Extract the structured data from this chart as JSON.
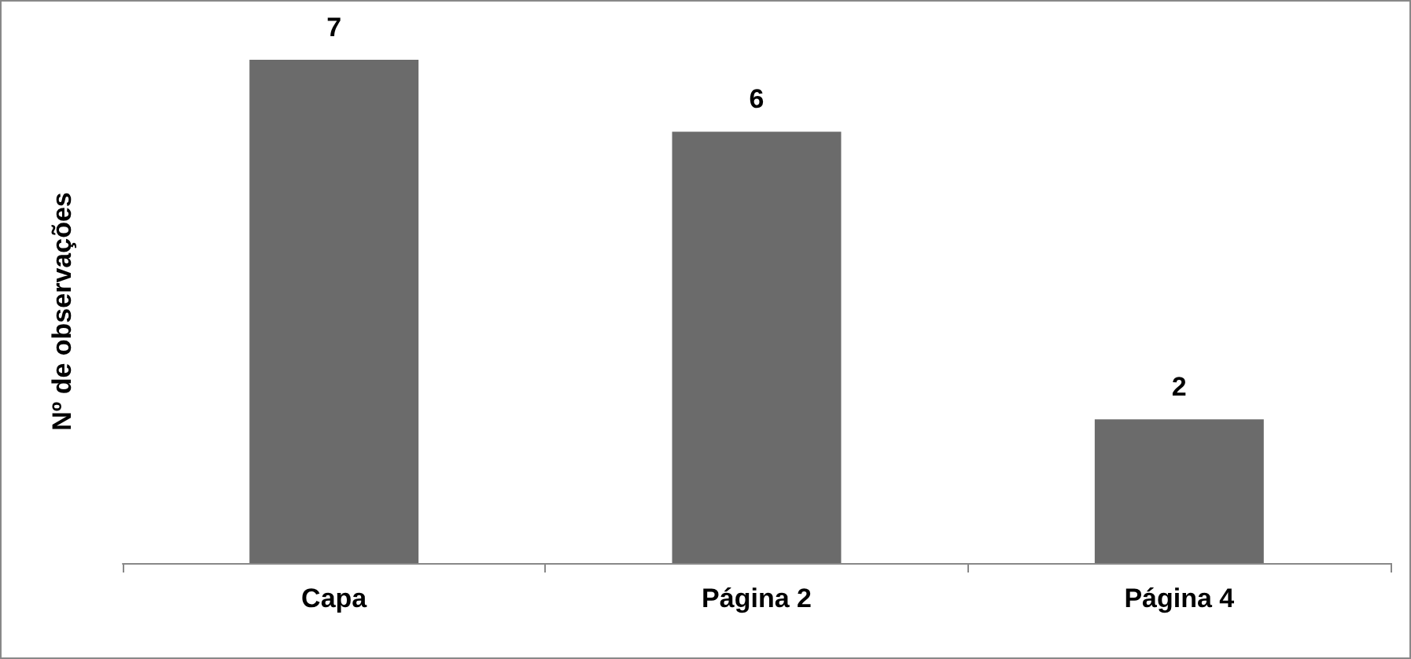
{
  "chart_data": {
    "type": "bar",
    "ylabel": "Nº de observações",
    "categories": [
      "Capa",
      "Página 2",
      "Página 4"
    ],
    "values": [
      7,
      6,
      2
    ],
    "color": "#6b6b6b",
    "data_labels": true
  }
}
